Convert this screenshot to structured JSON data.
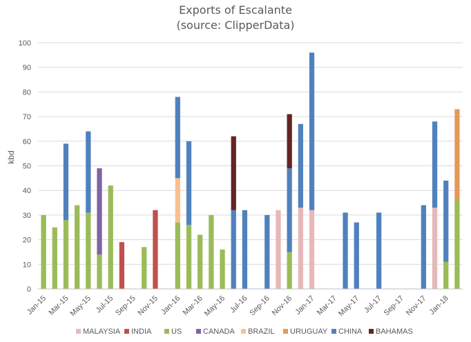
{
  "chart_data": {
    "type": "bar",
    "stacked": true,
    "title": "Exports of Escalante",
    "subtitle": "(source: ClipperData)",
    "xlabel": "",
    "ylabel": "kbd",
    "ylim": [
      0,
      100
    ],
    "yticks": [
      0,
      10,
      20,
      30,
      40,
      50,
      60,
      70,
      80,
      90,
      100
    ],
    "grid": true,
    "legend_position": "bottom",
    "categories": [
      "Jan-15",
      "Feb-15",
      "Mar-15",
      "Apr-15",
      "May-15",
      "Jun-15",
      "Jul-15",
      "Aug-15",
      "Sep-15",
      "Oct-15",
      "Nov-15",
      "Dec-15",
      "Jan-16",
      "Feb-16",
      "Mar-16",
      "Apr-16",
      "May-16",
      "Jun-16",
      "Jul-16",
      "Aug-16",
      "Sep-16",
      "Oct-16",
      "Nov-16",
      "Dec-16",
      "Jan-17",
      "Feb-17",
      "Mar-17",
      "Apr-17",
      "May-17",
      "Jun-17",
      "Jul-17",
      "Aug-17",
      "Sep-17",
      "Oct-17",
      "Nov-17",
      "Dec-17",
      "Jan-18",
      "Feb-18"
    ],
    "x_tick_labels": [
      "Jan-15",
      "Mar-15",
      "May-15",
      "Jul-15",
      "Sep-15",
      "Nov-15",
      "Jan-16",
      "Mar-16",
      "May-16",
      "Jul-16",
      "Sep-16",
      "Nov-16",
      "Jan-17",
      "Mar-17",
      "May-17",
      "Jul-17",
      "Sep-17",
      "Nov-17",
      "Jan-18"
    ],
    "series": [
      {
        "name": "MALAYSIA",
        "color": "#e6b9b8",
        "values": [
          0,
          0,
          0,
          0,
          0,
          0,
          0,
          0,
          0,
          0,
          0,
          0,
          0,
          0,
          0,
          0,
          0,
          0,
          0,
          0,
          0,
          32,
          0,
          33,
          32,
          0,
          0,
          0,
          0,
          0,
          0,
          0,
          0,
          0,
          0,
          33,
          0,
          0
        ]
      },
      {
        "name": "INDIA",
        "color": "#c0504d",
        "values": [
          0,
          0,
          0,
          0,
          0,
          0,
          0,
          19,
          0,
          0,
          32,
          0,
          0,
          0,
          0,
          0,
          0,
          0,
          0,
          0,
          0,
          0,
          0,
          0,
          0,
          0,
          0,
          0,
          0,
          0,
          0,
          0,
          0,
          0,
          0,
          0,
          0,
          0
        ]
      },
      {
        "name": "US",
        "color": "#9bbb59",
        "values": [
          30,
          25,
          28,
          34,
          31,
          14,
          42,
          0,
          0,
          17,
          0,
          0,
          27,
          26,
          22,
          30,
          16,
          0,
          0,
          0,
          0,
          0,
          15,
          0,
          0,
          0,
          0,
          0,
          0,
          0,
          0,
          0,
          0,
          0,
          0,
          0,
          11,
          36
        ]
      },
      {
        "name": "CANADA",
        "color": "#8064a2",
        "values": [
          0,
          0,
          0,
          0,
          0,
          35,
          0,
          0,
          0,
          0,
          0,
          0,
          0,
          0,
          0,
          0,
          0,
          0,
          0,
          0,
          0,
          0,
          0,
          0,
          0,
          0,
          0,
          0,
          0,
          0,
          0,
          0,
          0,
          0,
          0,
          0,
          0,
          0
        ]
      },
      {
        "name": "BRAZIL",
        "color": "#fac090",
        "values": [
          0,
          0,
          0,
          0,
          0,
          0,
          0,
          0,
          0,
          0,
          0,
          0,
          18,
          0,
          0,
          0,
          0,
          0,
          0,
          0,
          0,
          0,
          0,
          0,
          0,
          0,
          0,
          0,
          0,
          0,
          0,
          0,
          0,
          0,
          0,
          0,
          0,
          0
        ]
      },
      {
        "name": "URUGUAY",
        "color": "#e3995a",
        "values": [
          0,
          0,
          0,
          0,
          0,
          0,
          0,
          0,
          0,
          0,
          0,
          0,
          0,
          0,
          0,
          0,
          0,
          0,
          0,
          0,
          0,
          0,
          0,
          0,
          0,
          0,
          0,
          0,
          0,
          0,
          0,
          0,
          0,
          0,
          0,
          0,
          0,
          37
        ]
      },
      {
        "name": "CHINA",
        "color": "#4f81bd",
        "values": [
          0,
          0,
          31,
          0,
          33,
          0,
          0,
          0,
          0,
          0,
          0,
          0,
          33,
          34,
          0,
          0,
          0,
          32,
          32,
          0,
          30,
          0,
          34,
          34,
          64,
          0,
          0,
          31,
          27,
          0,
          31,
          0,
          0,
          0,
          34,
          35,
          33,
          0
        ]
      },
      {
        "name": "BAHAMAS",
        "color": "#632523",
        "values": [
          0,
          0,
          0,
          0,
          0,
          0,
          0,
          0,
          0,
          0,
          0,
          0,
          0,
          0,
          0,
          0,
          0,
          30,
          0,
          0,
          0,
          0,
          22,
          0,
          0,
          0,
          0,
          0,
          0,
          0,
          0,
          0,
          0,
          0,
          0,
          0,
          0,
          0
        ]
      }
    ]
  }
}
